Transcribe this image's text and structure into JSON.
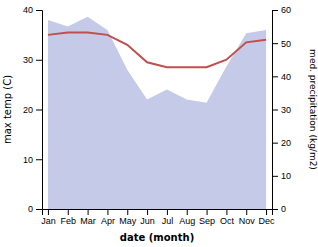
{
  "chart_data": {
    "type": "line",
    "categories": [
      "Jan",
      "Feb",
      "Mar",
      "Apr",
      "May",
      "Jun",
      "Jul",
      "Aug",
      "Sep",
      "Oct",
      "Nov",
      "Dec"
    ],
    "series": [
      {
        "type": "area",
        "color": "#c5cae9",
        "axis": "y2",
        "values": [
          57,
          55,
          58,
          54,
          42,
          33,
          36,
          33,
          32,
          43,
          53,
          54
        ]
      },
      {
        "type": "line",
        "color": "#c0504d",
        "values": [
          35,
          35.5,
          35.5,
          35,
          33,
          29.5,
          28.5,
          28.5,
          28.5,
          30,
          33.5,
          34
        ]
      }
    ],
    "xlabel": "date (month)",
    "ylabel": "max temp (C)",
    "y2label": "med. precipitation (kg/m2)",
    "ylim": [
      0,
      40
    ],
    "yticks": [
      0,
      10,
      20,
      30,
      40
    ],
    "y2lim": [
      0,
      60
    ],
    "y2ticks": [
      0,
      10,
      20,
      30,
      40,
      50,
      60
    ],
    "grid": false
  }
}
